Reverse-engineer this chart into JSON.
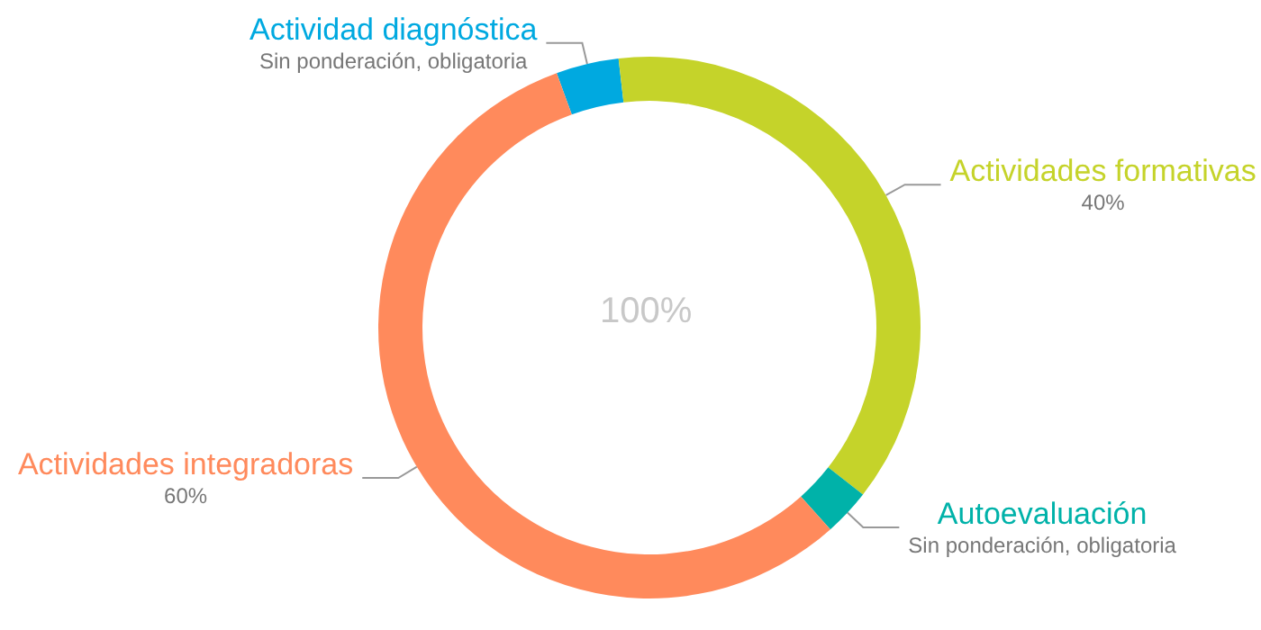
{
  "chart_data": {
    "type": "donut",
    "categories": [
      "Actividad diagnóstica",
      "Actividades formativas",
      "Autoevaluación",
      "Actividades integradoras"
    ],
    "values": [
      4,
      40,
      3,
      60
    ],
    "colors": [
      "#00a9e0",
      "#c5d32a",
      "#00b2a9",
      "#ff8a5c"
    ],
    "value_labels": [
      "Sin ponderación, obligatoria",
      "40%",
      "Sin ponderación, obligatoria",
      "60%"
    ],
    "annotations": [
      "100%"
    ],
    "legend": false
  }
}
